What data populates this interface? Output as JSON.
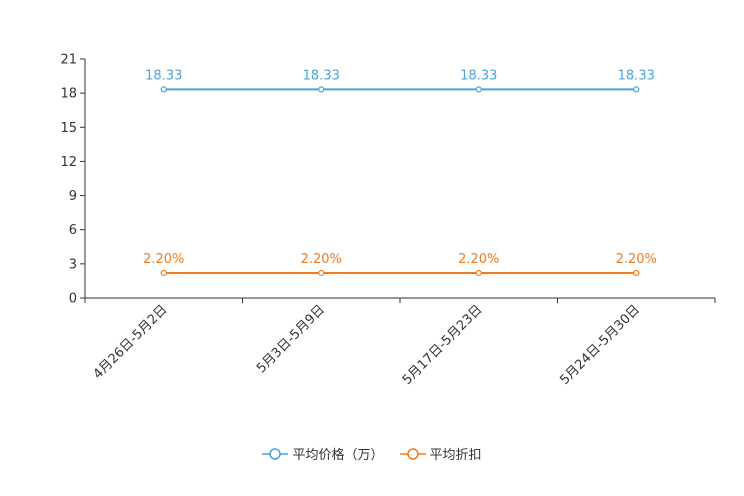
{
  "chart_data": {
    "type": "line",
    "categories": [
      "4月26日-5月2日",
      "5月3日-5月9日",
      "5月17日-5月23日",
      "5月24日-5月30日"
    ],
    "series": [
      {
        "name": "平均价格（万）",
        "values": [
          18.33,
          18.33,
          18.33,
          18.33
        ],
        "labels": [
          "18.33",
          "18.33",
          "18.33",
          "18.33"
        ],
        "color": "#4aa3d4"
      },
      {
        "name": "平均折扣",
        "values": [
          2.2,
          2.2,
          2.2,
          2.2
        ],
        "labels": [
          "2.20%",
          "2.20%",
          "2.20%",
          "2.20%"
        ],
        "color": "#f07a1e"
      }
    ],
    "yticks": [
      "0",
      "3",
      "6",
      "9",
      "12",
      "15",
      "18",
      "21"
    ],
    "ylim": [
      0,
      21
    ],
    "xlabel": "",
    "ylabel": "",
    "legend_position": "bottom"
  }
}
